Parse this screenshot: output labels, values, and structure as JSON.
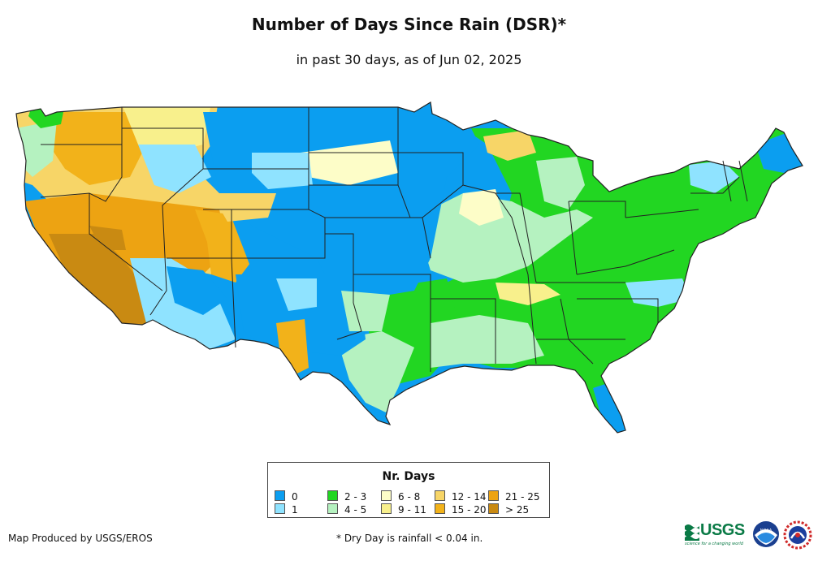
{
  "title": "Number of Days Since Rain (DSR)*",
  "subtitle": "in past 30 days, as of Jun 02, 2025",
  "legend": {
    "title": "Nr. Days",
    "items": [
      {
        "label": "0",
        "color": "#0b9ef0"
      },
      {
        "label": "1",
        "color": "#8fe3ff"
      },
      {
        "label": "2 - 3",
        "color": "#22d622"
      },
      {
        "label": "4 - 5",
        "color": "#b5f2c0"
      },
      {
        "label": "6 - 8",
        "color": "#fdfdc8"
      },
      {
        "label": "9 - 11",
        "color": "#f8f08c"
      },
      {
        "label": "12 - 14",
        "color": "#f7d567"
      },
      {
        "label": "15 - 20",
        "color": "#f2b21a"
      },
      {
        "label": "21 - 25",
        "color": "#eda312"
      },
      {
        "label": "> 25",
        "color": "#c98a12"
      }
    ]
  },
  "credit": "Map Produced by USGS/EROS",
  "footnote": "* Dry Day is rainfall < 0.04 in.",
  "logos": {
    "usgs_text": "USGS",
    "usgs_tagline": "science for a changing world",
    "noaa_text": "NOAA",
    "nws_icon": "nws-logo"
  }
}
